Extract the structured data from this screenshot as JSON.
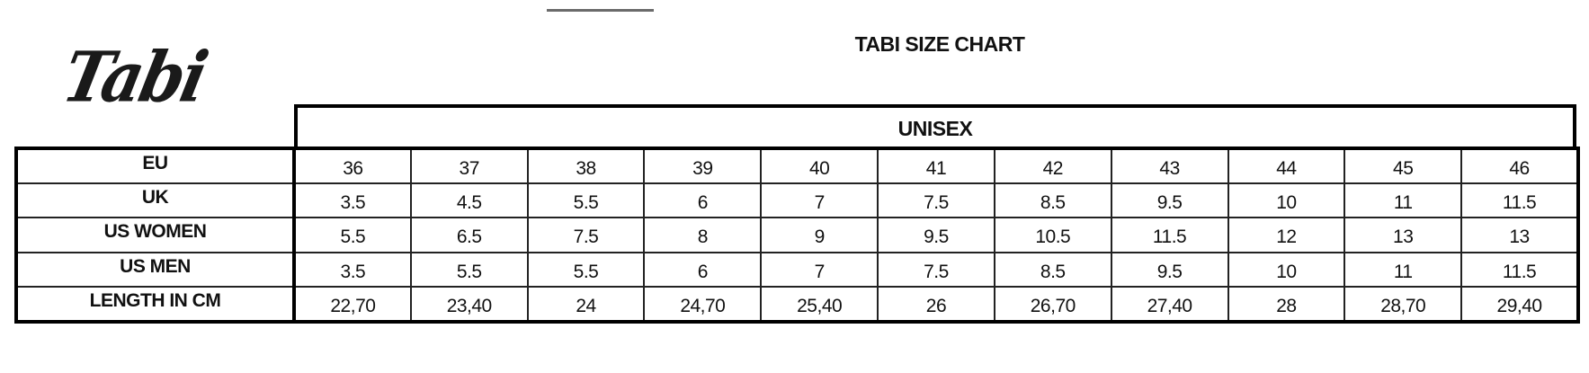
{
  "logo": {
    "text": "Tabi"
  },
  "title": "TABI SIZE CHART",
  "group_header": "UNISEX",
  "rows": [
    {
      "label": "EU",
      "values": [
        "36",
        "37",
        "38",
        "39",
        "40",
        "41",
        "42",
        "43",
        "44",
        "45",
        "46"
      ]
    },
    {
      "label": "UK",
      "values": [
        "3.5",
        "4.5",
        "5.5",
        "6",
        "7",
        "7.5",
        "8.5",
        "9.5",
        "10",
        "11",
        "11.5"
      ]
    },
    {
      "label": "US WOMEN",
      "values": [
        "5.5",
        "6.5",
        "7.5",
        "8",
        "9",
        "9.5",
        "10.5",
        "11.5",
        "12",
        "13",
        "13"
      ]
    },
    {
      "label": "US MEN",
      "values": [
        "3.5",
        "5.5",
        "5.5",
        "6",
        "7",
        "7.5",
        "8.5",
        "9.5",
        "10",
        "11",
        "11.5"
      ]
    },
    {
      "label": "LENGTH IN CM",
      "values": [
        "22,70",
        "23,40",
        "24",
        "24,70",
        "25,40",
        "26",
        "26,70",
        "27,40",
        "28",
        "28,70",
        "29,40"
      ]
    }
  ]
}
